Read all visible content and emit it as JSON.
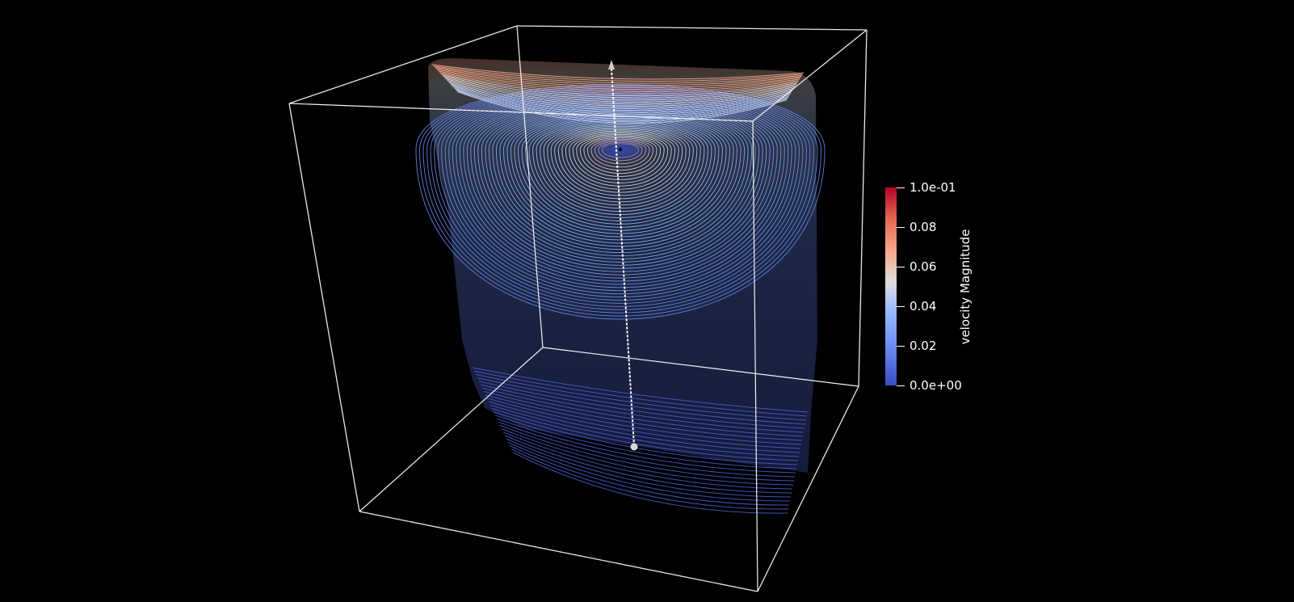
{
  "render": {
    "background": "#000000",
    "outline_color": "#ffffff",
    "subject": "streamlines in a cube-shaped domain"
  },
  "colorbar": {
    "title": "velocity Magnitude",
    "colormap": [
      "#3b4cc0",
      "#6788ee",
      "#9abbff",
      "#dddddd",
      "#f7a889",
      "#e26952",
      "#b40426"
    ],
    "range": [
      0,
      0.1
    ],
    "ticks": [
      {
        "label": "1.0e-01",
        "value": 0.1
      },
      {
        "label": "0.08",
        "value": 0.08
      },
      {
        "label": "0.06",
        "value": 0.06
      },
      {
        "label": "0.04",
        "value": 0.04
      },
      {
        "label": "0.02",
        "value": 0.02
      },
      {
        "label": "0.0e+00",
        "value": 0.0
      }
    ]
  }
}
